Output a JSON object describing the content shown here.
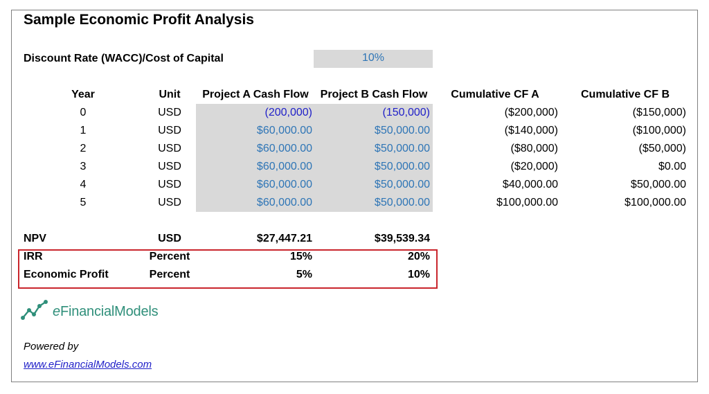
{
  "title": "Sample Economic Profit Analysis",
  "wacc": {
    "label": "Discount Rate (WACC)/Cost of Capital",
    "value": "10%"
  },
  "table": {
    "headers": [
      "Year",
      "Unit",
      "Project A Cash Flow",
      "Project B Cash Flow",
      "Cumulative CF A",
      "Cumulative CF B"
    ],
    "rows": [
      [
        "0",
        "USD",
        "(200,000)",
        "(150,000)",
        "($200,000)",
        "($150,000)"
      ],
      [
        "1",
        "USD",
        "$60,000.00",
        "$50,000.00",
        "($140,000)",
        "($100,000)"
      ],
      [
        "2",
        "USD",
        "$60,000.00",
        "$50,000.00",
        "($80,000)",
        "($50,000)"
      ],
      [
        "3",
        "USD",
        "$60,000.00",
        "$50,000.00",
        "($20,000)",
        "$0.00"
      ],
      [
        "4",
        "USD",
        "$60,000.00",
        "$50,000.00",
        "$40,000.00",
        "$50,000.00"
      ],
      [
        "5",
        "USD",
        "$60,000.00",
        "$50,000.00",
        "$100,000.00",
        "$100,000.00"
      ]
    ]
  },
  "summary": [
    {
      "label": "NPV",
      "unit": "USD",
      "a": "$27,447.21",
      "b": "$39,539.34"
    },
    {
      "label": "IRR",
      "unit": "Percent",
      "a": "15%",
      "b": "20%"
    },
    {
      "label": "Economic Profit",
      "unit": "Percent",
      "a": "5%",
      "b": "10%"
    }
  ],
  "logo": {
    "prefix": "e",
    "text": "FinancialModels",
    "icon": "line-chart-icon",
    "color": "#2f8f7a"
  },
  "footer": {
    "powered_by": "Powered by",
    "link": "www.eFinancialModels.com"
  },
  "colors": {
    "input_blue": "#2e75b6",
    "negative_blue": "#1f1fc8",
    "highlight_red": "#c9252c",
    "input_fill": "#d9d9d9"
  }
}
